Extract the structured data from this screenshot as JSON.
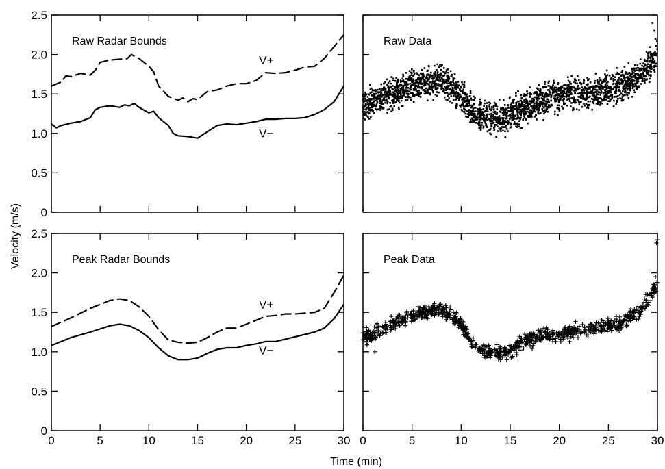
{
  "figure": {
    "ylabel": "Velocity (m/s)",
    "xlabel": "Time (min)"
  },
  "chart_data": [
    {
      "type": "line",
      "title": "Raw Radar Bounds",
      "xlim": [
        0,
        30
      ],
      "ylim": [
        0,
        2.5
      ],
      "x_ticks": [
        "0",
        "5",
        "10",
        "15",
        "20",
        "25",
        "30"
      ],
      "y_ticks": [
        "0",
        "0.5",
        "1.0",
        "1.5",
        "2.0",
        "2.5"
      ],
      "show_x_tick_labels": false,
      "show_y_tick_labels": true,
      "series": [
        {
          "name": "V+",
          "style": "dashed",
          "x": [
            0,
            1,
            1.5,
            2,
            3,
            4,
            4.5,
            5,
            6,
            7,
            7.8,
            8.2,
            9,
            10,
            10.5,
            11,
            12,
            13,
            13.5,
            14,
            14.5,
            15,
            16,
            17,
            18,
            19,
            20,
            21,
            21.5,
            22,
            23,
            24,
            25,
            26,
            27,
            28,
            29,
            30
          ],
          "values": [
            1.6,
            1.65,
            1.73,
            1.72,
            1.76,
            1.74,
            1.8,
            1.9,
            1.93,
            1.94,
            1.95,
            2.0,
            1.95,
            1.85,
            1.78,
            1.6,
            1.47,
            1.42,
            1.45,
            1.4,
            1.44,
            1.43,
            1.53,
            1.55,
            1.6,
            1.63,
            1.63,
            1.67,
            1.72,
            1.77,
            1.76,
            1.77,
            1.8,
            1.84,
            1.85,
            1.95,
            2.1,
            2.25
          ]
        },
        {
          "name": "V-",
          "style": "solid",
          "x": [
            0,
            0.5,
            1,
            2,
            3,
            4,
            4.5,
            5,
            6,
            7,
            7.5,
            8,
            8.5,
            9,
            10,
            10.5,
            11,
            12,
            12.5,
            13,
            14,
            15,
            16,
            17,
            18,
            19,
            20,
            21,
            22,
            23,
            24,
            25,
            26,
            27,
            28,
            29,
            30
          ],
          "values": [
            1.12,
            1.07,
            1.1,
            1.13,
            1.15,
            1.2,
            1.3,
            1.33,
            1.35,
            1.33,
            1.36,
            1.35,
            1.38,
            1.33,
            1.26,
            1.28,
            1.2,
            1.1,
            1.0,
            0.97,
            0.96,
            0.94,
            1.02,
            1.1,
            1.12,
            1.11,
            1.13,
            1.15,
            1.18,
            1.18,
            1.19,
            1.19,
            1.2,
            1.24,
            1.3,
            1.4,
            1.6
          ]
        }
      ],
      "annotations": [
        {
          "text": "V+",
          "x": 21.3,
          "y": 1.88
        },
        {
          "text": "V−",
          "x": 21.3,
          "y": 0.95
        }
      ]
    },
    {
      "type": "scatter",
      "title": "Raw Data",
      "marker": "dot",
      "xlim": [
        0,
        30
      ],
      "ylim": [
        0,
        2.5
      ],
      "x_ticks": [
        "0",
        "5",
        "10",
        "15",
        "20",
        "25",
        "30"
      ],
      "y_ticks": [
        "0",
        "0.5",
        "1.0",
        "1.5",
        "2.0",
        "2.5"
      ],
      "show_x_tick_labels": false,
      "show_y_tick_labels": false,
      "trend": {
        "x": [
          0,
          1,
          2,
          3,
          4,
          5,
          6,
          7,
          8,
          9,
          10,
          11,
          12,
          13,
          14,
          15,
          16,
          17,
          18,
          19,
          20,
          21,
          22,
          23,
          24,
          25,
          26,
          27,
          28,
          29,
          30
        ],
        "values": [
          1.35,
          1.4,
          1.45,
          1.5,
          1.55,
          1.6,
          1.63,
          1.65,
          1.66,
          1.6,
          1.45,
          1.3,
          1.22,
          1.2,
          1.18,
          1.22,
          1.3,
          1.36,
          1.4,
          1.45,
          1.48,
          1.52,
          1.5,
          1.52,
          1.55,
          1.58,
          1.6,
          1.65,
          1.72,
          1.82,
          2.0
        ],
        "band_halfwidth": 0.22,
        "outliers": [
          [
            29.5,
            2.4
          ],
          [
            29.7,
            2.3
          ],
          [
            29.8,
            2.2
          ],
          [
            14.5,
            0.95
          ]
        ]
      }
    },
    {
      "type": "line",
      "title": "Peak Radar Bounds",
      "xlim": [
        0,
        30
      ],
      "ylim": [
        0,
        2.5
      ],
      "x_ticks": [
        "0",
        "5",
        "10",
        "15",
        "20",
        "25",
        "30"
      ],
      "y_ticks": [
        "0",
        "0.5",
        "1.0",
        "1.5",
        "2.0",
        "2.5"
      ],
      "show_x_tick_labels": true,
      "show_y_tick_labels": true,
      "series": [
        {
          "name": "V+",
          "style": "dashed",
          "x": [
            0,
            2,
            4,
            6,
            7,
            8,
            9,
            10,
            11,
            12,
            13,
            14,
            15,
            16,
            17,
            18,
            19,
            20,
            21,
            22,
            23,
            24,
            25,
            26,
            27,
            28,
            29,
            30
          ],
          "values": [
            1.32,
            1.43,
            1.55,
            1.65,
            1.67,
            1.65,
            1.57,
            1.45,
            1.28,
            1.15,
            1.12,
            1.11,
            1.12,
            1.18,
            1.25,
            1.3,
            1.3,
            1.35,
            1.4,
            1.45,
            1.46,
            1.48,
            1.48,
            1.49,
            1.5,
            1.55,
            1.75,
            1.97
          ]
        },
        {
          "name": "V-",
          "style": "solid",
          "x": [
            0,
            2,
            4,
            6,
            7,
            8,
            9,
            10,
            11,
            12,
            13,
            14,
            15,
            16,
            17,
            18,
            19,
            20,
            21,
            22,
            23,
            24,
            25,
            26,
            27,
            28,
            29,
            30
          ],
          "values": [
            1.08,
            1.18,
            1.25,
            1.33,
            1.35,
            1.33,
            1.27,
            1.18,
            1.05,
            0.95,
            0.9,
            0.9,
            0.92,
            0.98,
            1.03,
            1.05,
            1.05,
            1.08,
            1.1,
            1.13,
            1.13,
            1.16,
            1.19,
            1.22,
            1.25,
            1.3,
            1.42,
            1.6
          ]
        }
      ],
      "annotations": [
        {
          "text": "V+",
          "x": 21.3,
          "y": 1.55
        },
        {
          "text": "V−",
          "x": 21.3,
          "y": 0.97
        }
      ]
    },
    {
      "type": "scatter",
      "title": "Peak Data",
      "marker": "plus",
      "xlim": [
        0,
        30
      ],
      "ylim": [
        0,
        2.5
      ],
      "x_ticks": [
        "0",
        "5",
        "10",
        "15",
        "20",
        "25",
        "30"
      ],
      "y_ticks": [
        "0",
        "0.5",
        "1.0",
        "1.5",
        "2.0",
        "2.5"
      ],
      "show_x_tick_labels": true,
      "show_y_tick_labels": false,
      "trend": {
        "x": [
          0,
          1,
          2,
          3,
          4,
          5,
          6,
          7,
          8,
          9,
          10,
          11,
          12,
          13,
          14,
          15,
          16,
          17,
          18,
          19,
          20,
          21,
          22,
          23,
          24,
          25,
          26,
          27,
          28,
          29,
          30
        ],
        "values": [
          1.18,
          1.22,
          1.28,
          1.35,
          1.4,
          1.45,
          1.5,
          1.52,
          1.52,
          1.48,
          1.35,
          1.12,
          1.02,
          1.0,
          0.98,
          1.02,
          1.1,
          1.15,
          1.2,
          1.22,
          1.22,
          1.25,
          1.28,
          1.3,
          1.3,
          1.32,
          1.35,
          1.4,
          1.5,
          1.65,
          1.85
        ],
        "band_halfwidth": 0.1,
        "outliers": [
          [
            30,
            2.42
          ],
          [
            29.9,
            2.38
          ],
          [
            29.8,
            1.95
          ],
          [
            1.2,
            1.0
          ],
          [
            14.0,
            0.9
          ]
        ]
      }
    }
  ]
}
